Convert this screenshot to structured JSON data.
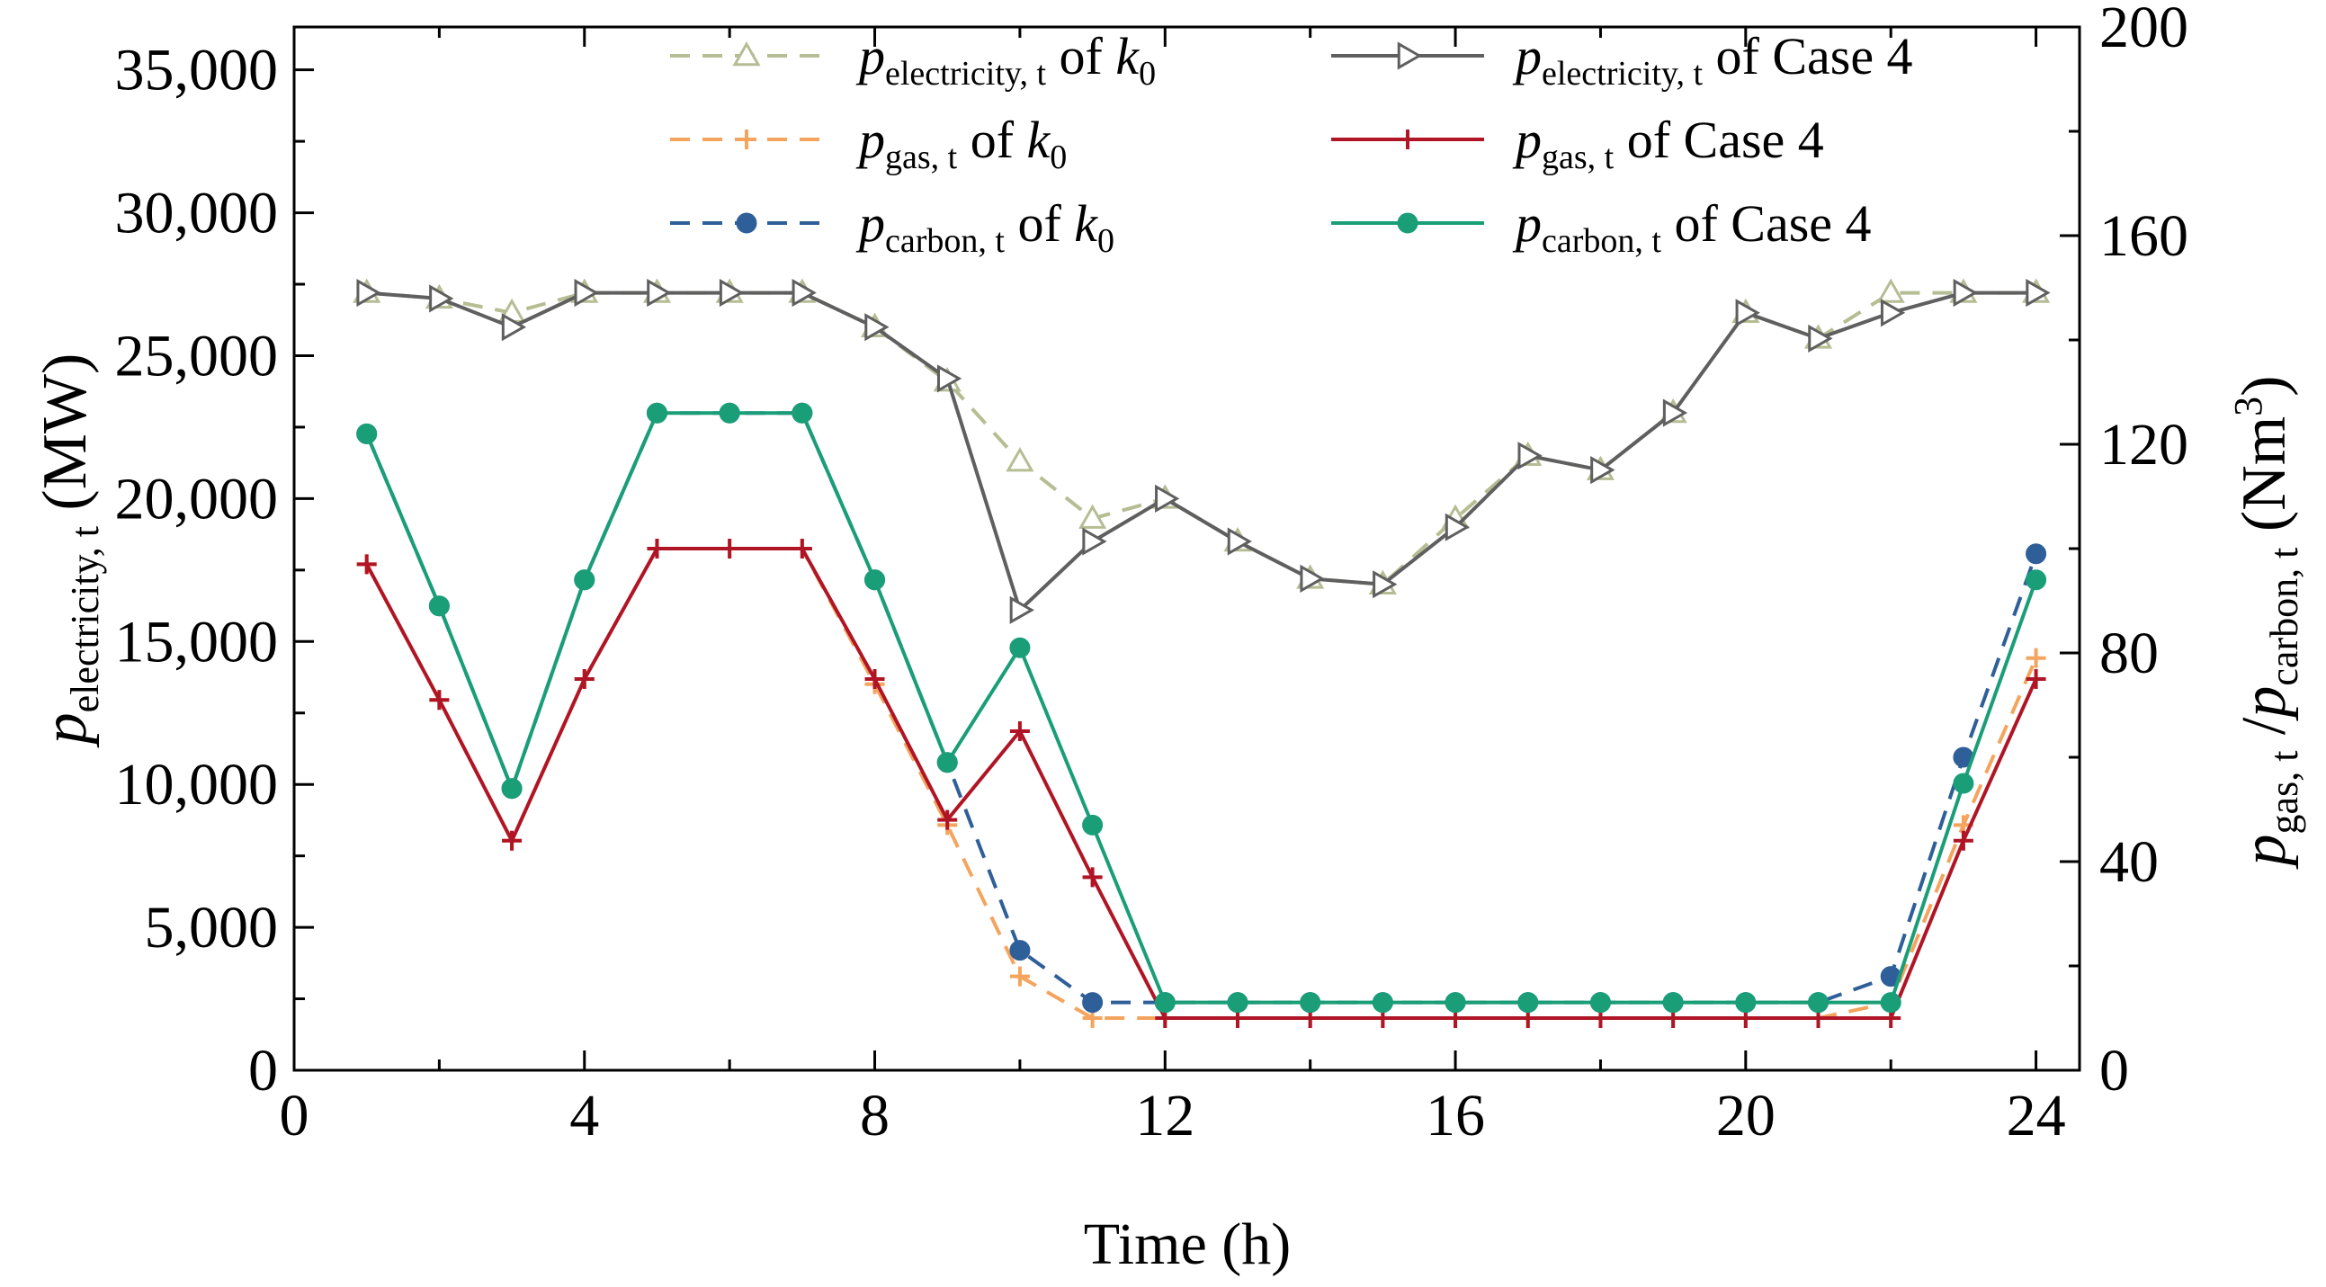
{
  "chart_data": {
    "type": "line",
    "xlabel": "Time (h)",
    "ylabel_left": {
      "symbol": "p",
      "sub": "electricity, t",
      "unit": " (MW)"
    },
    "ylabel_right": {
      "symbol1": "p",
      "sub1": "gas, t",
      "sep": " /",
      "symbol2": "p",
      "sub2": "carbon, t",
      "unit_open": " (Nm",
      "unit_sup": "3",
      "unit_close": ")"
    },
    "x_range": [
      0,
      24.6
    ],
    "x_ticks": [
      0,
      4,
      8,
      12,
      16,
      20,
      24
    ],
    "x_tick_labels": [
      "0",
      "4",
      "8",
      "12",
      "16",
      "20",
      "24"
    ],
    "y_left_range": [
      0,
      36500
    ],
    "y_left_ticks": [
      0,
      5000,
      10000,
      15000,
      20000,
      25000,
      30000,
      35000
    ],
    "y_left_tick_labels": [
      "0",
      "5,000",
      "10,000",
      "15,000",
      "20,000",
      "25,000",
      "30,000",
      "35,000"
    ],
    "y_right_range": [
      0,
      200
    ],
    "y_right_ticks": [
      0,
      40,
      80,
      120,
      160,
      200
    ],
    "y_right_tick_labels": [
      "0",
      "40",
      "80",
      "120",
      "160",
      "200"
    ],
    "x": [
      1,
      2,
      3,
      4,
      5,
      6,
      7,
      8,
      9,
      10,
      11,
      12,
      13,
      14,
      15,
      16,
      17,
      18,
      19,
      20,
      21,
      22,
      23,
      24
    ],
    "series": [
      {
        "name": "p_electricity,t of k0",
        "axis": "left",
        "color": "#b5bd93",
        "dash": true,
        "marker": "triangle-up",
        "legend": {
          "symbol": "p",
          "sub": "electricity, t",
          "rest": " of ",
          "k": "k",
          "ksub": "0",
          "suffix": ""
        },
        "values": [
          27200,
          27000,
          26500,
          27200,
          27200,
          27200,
          27200,
          26000,
          24100,
          21300,
          19300,
          20000,
          18500,
          17200,
          17000,
          19300,
          21500,
          21000,
          23000,
          26500,
          25600,
          27200,
          27200,
          27200
        ]
      },
      {
        "name": "p_gas,t of k0",
        "axis": "right",
        "color": "#f5a45d",
        "dash": true,
        "marker": "plus",
        "legend": {
          "symbol": "p",
          "sub": "gas, t",
          "rest": " of ",
          "k": "k",
          "ksub": "0",
          "suffix": ""
        },
        "values": [
          97,
          71,
          44,
          75,
          100,
          100,
          100,
          74,
          47,
          18,
          10,
          10,
          10,
          10,
          10,
          10,
          10,
          10,
          10,
          10,
          10,
          13,
          47,
          79
        ]
      },
      {
        "name": "p_carbon,t of k0",
        "axis": "right",
        "color": "#2f5f98",
        "dash": true,
        "marker": "circle",
        "legend": {
          "symbol": "p",
          "sub": "carbon, t",
          "rest": " of ",
          "k": "k",
          "ksub": "0",
          "suffix": ""
        },
        "values": [
          122,
          89,
          54,
          94,
          126,
          126,
          126,
          94,
          59,
          23,
          13,
          13,
          13,
          13,
          13,
          13,
          13,
          13,
          13,
          13,
          13,
          18,
          60,
          99
        ]
      },
      {
        "name": "p_electricity,t of Case 4",
        "axis": "left",
        "color": "#5f5f5f",
        "dash": false,
        "marker": "triangle-right",
        "legend": {
          "symbol": "p",
          "sub": "electricity, t",
          "rest": " of Case 4",
          "k": "",
          "ksub": "",
          "suffix": ""
        },
        "values": [
          27200,
          27000,
          26000,
          27200,
          27200,
          27200,
          27200,
          26000,
          24200,
          16100,
          18500,
          20000,
          18500,
          17200,
          17000,
          19000,
          21500,
          21000,
          23000,
          26500,
          25600,
          26500,
          27200,
          27200
        ]
      },
      {
        "name": "p_gas,t of Case 4",
        "axis": "right",
        "color": "#b01525",
        "dash": false,
        "marker": "plus",
        "legend": {
          "symbol": "p",
          "sub": "gas, t",
          "rest": " of Case 4",
          "k": "",
          "ksub": "",
          "suffix": ""
        },
        "values": [
          97,
          71,
          44,
          75,
          100,
          100,
          100,
          75,
          48,
          65,
          37,
          10,
          10,
          10,
          10,
          10,
          10,
          10,
          10,
          10,
          10,
          10,
          44,
          75
        ]
      },
      {
        "name": "p_carbon,t of Case 4",
        "axis": "right",
        "color": "#1a9e78",
        "dash": false,
        "marker": "circle",
        "legend": {
          "symbol": "p",
          "sub": "carbon, t",
          "rest": " of Case 4",
          "k": "",
          "ksub": "",
          "suffix": ""
        },
        "values": [
          122,
          89,
          54,
          94,
          126,
          126,
          126,
          94,
          59,
          81,
          47,
          13,
          13,
          13,
          13,
          13,
          13,
          13,
          13,
          13,
          13,
          13,
          55,
          94
        ]
      }
    ],
    "legend_position": "top-center"
  }
}
